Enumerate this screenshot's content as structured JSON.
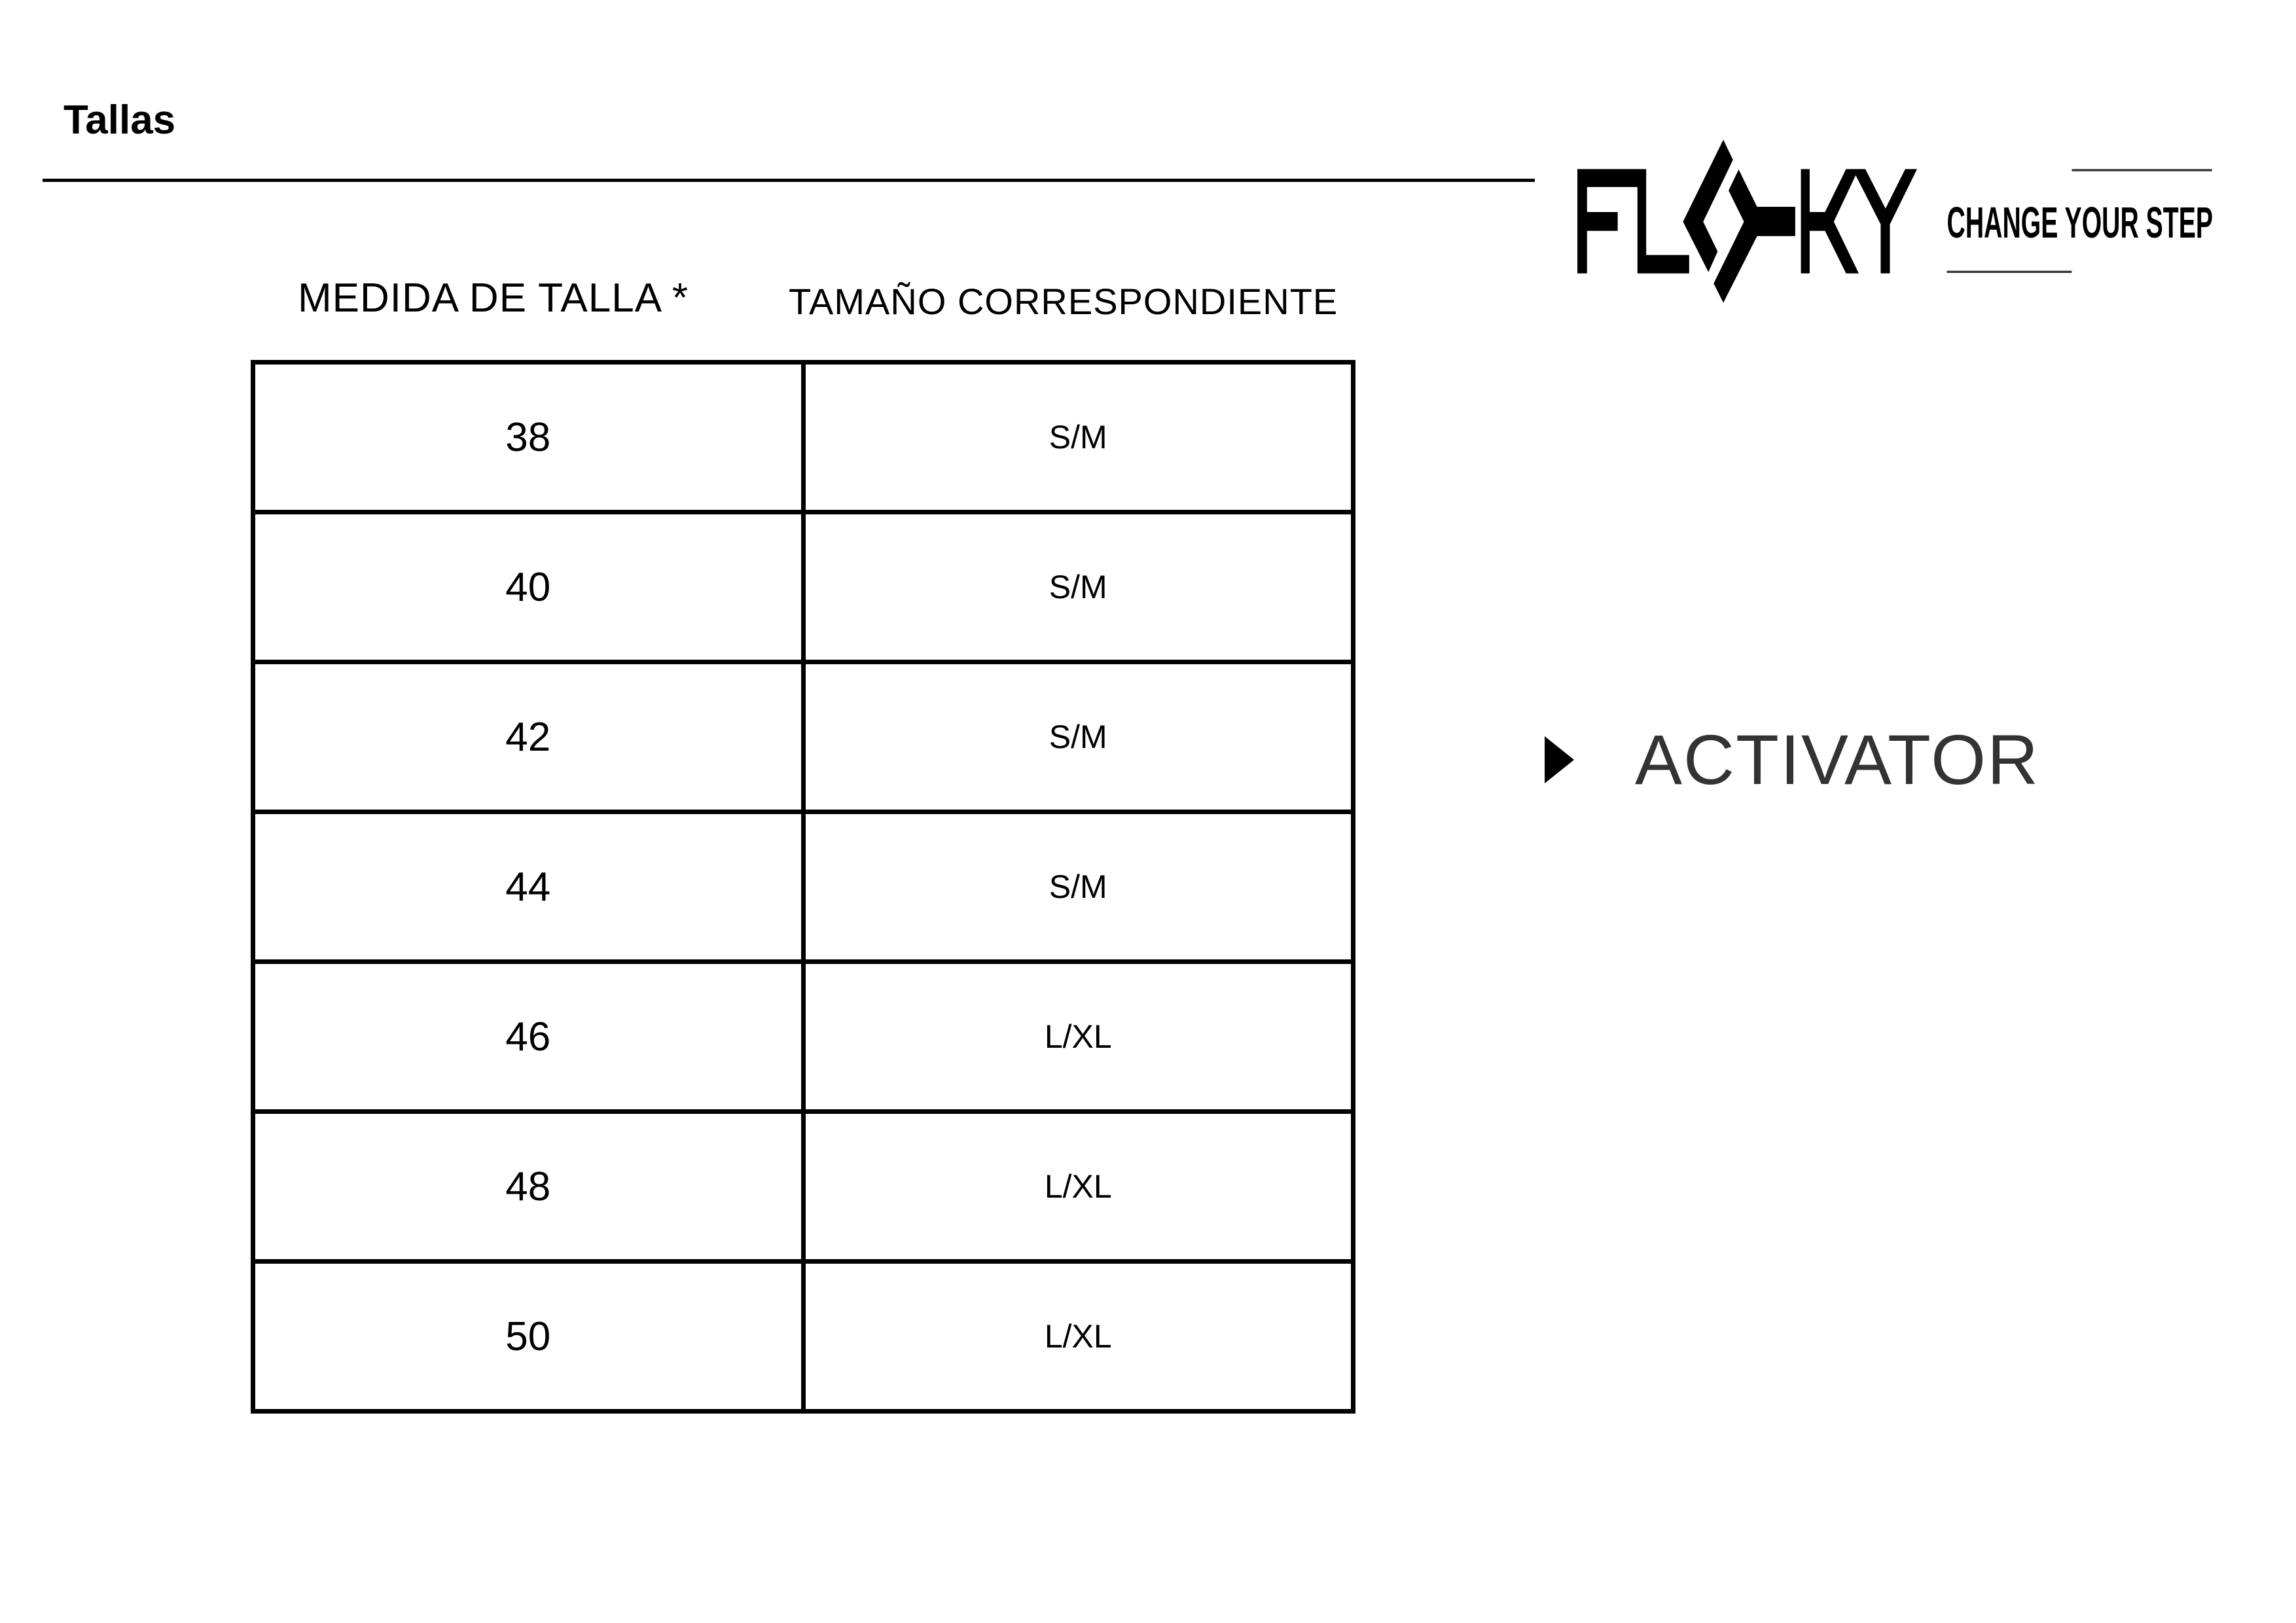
{
  "page": {
    "title": "Tallas"
  },
  "brand": {
    "logo_text": "FLOKY",
    "tagline": "CHANGE YOUR STEP"
  },
  "table": {
    "headers": [
      "MEDIDA DE TALLA *",
      "TAMAÑO CORRESPONDIENTE"
    ],
    "rows": [
      {
        "size": "38",
        "fit": "S/M"
      },
      {
        "size": "40",
        "fit": "S/M"
      },
      {
        "size": "42",
        "fit": "S/M"
      },
      {
        "size": "44",
        "fit": "S/M"
      },
      {
        "size": "46",
        "fit": "L/XL"
      },
      {
        "size": "48",
        "fit": "L/XL"
      },
      {
        "size": "50",
        "fit": "L/XL"
      }
    ]
  },
  "product": {
    "name": "ACTIVATOR",
    "icon": "play-triangle-icon"
  }
}
